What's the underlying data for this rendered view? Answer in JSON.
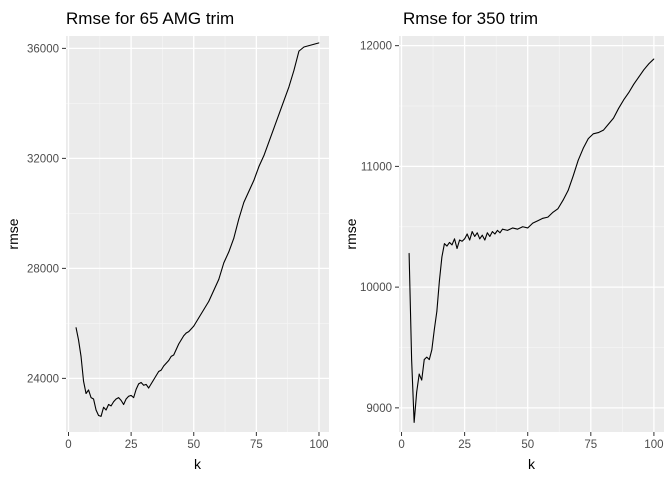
{
  "chart_data": [
    {
      "type": "line",
      "title": "Rmse for 65 AMG trim",
      "xlabel": "k",
      "ylabel": "rmse",
      "xlim": [
        -1,
        104
      ],
      "ylim": [
        22050,
        36450
      ],
      "xticks": [
        0,
        25,
        50,
        75,
        100
      ],
      "xtick_labels": [
        "0",
        "25",
        "50",
        "75",
        "100"
      ],
      "yticks": [
        24000,
        28000,
        32000,
        36000
      ],
      "ytick_labels": [
        "24000",
        "28000",
        "32000",
        "36000"
      ],
      "grid": true,
      "legend": "none",
      "series": [
        {
          "x": [
            3,
            4,
            5,
            6,
            7,
            8,
            9,
            10,
            11,
            12,
            13,
            14,
            15,
            16,
            17,
            18,
            19,
            20,
            21,
            22,
            23,
            24,
            25,
            26,
            27,
            28,
            29,
            30,
            31,
            32,
            33,
            34,
            35,
            36,
            37,
            38,
            39,
            40,
            41,
            42,
            43,
            44,
            45,
            46,
            47,
            48,
            49,
            50,
            52,
            54,
            56,
            58,
            60,
            62,
            64,
            66,
            68,
            70,
            72,
            74,
            76,
            78,
            80,
            82,
            84,
            86,
            88,
            90,
            92,
            94,
            96,
            98,
            100
          ],
          "y": [
            25850,
            25400,
            24800,
            23900,
            23450,
            23580,
            23300,
            23250,
            22850,
            22650,
            22620,
            22950,
            22850,
            23050,
            23000,
            23150,
            23250,
            23300,
            23200,
            23050,
            23250,
            23350,
            23380,
            23300,
            23600,
            23800,
            23850,
            23750,
            23780,
            23650,
            23800,
            23950,
            24100,
            24250,
            24300,
            24450,
            24550,
            24650,
            24800,
            24850,
            25050,
            25250,
            25400,
            25550,
            25650,
            25700,
            25800,
            25900,
            26200,
            26500,
            26800,
            27200,
            27600,
            28200,
            28600,
            29100,
            29800,
            30400,
            30800,
            31200,
            31700,
            32100,
            32600,
            33100,
            33600,
            34100,
            34600,
            35200,
            35900,
            36050,
            36100,
            36150,
            36200
          ]
        }
      ]
    },
    {
      "type": "line",
      "title": "Rmse for 350 trim",
      "xlabel": "k",
      "ylabel": "rmse",
      "xlim": [
        -1,
        104
      ],
      "ylim": [
        8800,
        12080
      ],
      "xticks": [
        0,
        25,
        50,
        75,
        100
      ],
      "xtick_labels": [
        "0",
        "25",
        "50",
        "75",
        "100"
      ],
      "yticks": [
        9000,
        10000,
        11000,
        12000
      ],
      "ytick_labels": [
        "9000",
        "10000",
        "11000",
        "12000"
      ],
      "grid": true,
      "legend": "none",
      "series": [
        {
          "x": [
            3,
            4,
            5,
            6,
            7,
            8,
            9,
            10,
            11,
            12,
            13,
            14,
            15,
            16,
            17,
            18,
            19,
            20,
            21,
            22,
            23,
            24,
            25,
            26,
            27,
            28,
            29,
            30,
            31,
            32,
            33,
            34,
            35,
            36,
            37,
            38,
            39,
            40,
            42,
            44,
            46,
            48,
            50,
            52,
            54,
            56,
            58,
            60,
            62,
            64,
            66,
            68,
            70,
            72,
            74,
            76,
            78,
            80,
            82,
            84,
            86,
            88,
            90,
            92,
            94,
            96,
            98,
            100
          ],
          "y": [
            10280,
            9400,
            8880,
            9130,
            9280,
            9230,
            9400,
            9420,
            9400,
            9480,
            9650,
            9800,
            10050,
            10250,
            10360,
            10340,
            10370,
            10350,
            10400,
            10320,
            10390,
            10380,
            10400,
            10440,
            10390,
            10460,
            10420,
            10450,
            10400,
            10430,
            10390,
            10450,
            10420,
            10460,
            10440,
            10470,
            10450,
            10480,
            10470,
            10490,
            10480,
            10500,
            10490,
            10530,
            10550,
            10570,
            10580,
            10620,
            10650,
            10720,
            10800,
            10920,
            11050,
            11150,
            11230,
            11270,
            11280,
            11300,
            11350,
            11400,
            11480,
            11550,
            11610,
            11680,
            11740,
            11800,
            11850,
            11890
          ]
        }
      ]
    }
  ]
}
